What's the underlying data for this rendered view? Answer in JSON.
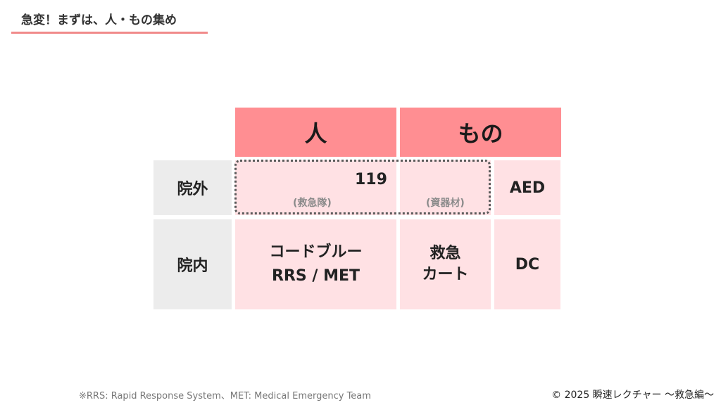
{
  "title": "急変！まずは、人・もの集め",
  "table": {
    "col_headers": [
      "人",
      "もの"
    ],
    "row_headers": [
      "院外",
      "院内"
    ],
    "outside": {
      "people_value": "119",
      "people_note": "(救急隊)",
      "things_note": "(資器材)",
      "device": "AED"
    },
    "inside": {
      "people_line1": "コードブルー",
      "people_line2": "RRS / MET",
      "things_line1": "救急",
      "things_line2": "カート",
      "device": "DC"
    }
  },
  "footnote": "※RRS: Rapid Response System、MET: Medical Emergency Team",
  "copyright": "© 2025 瞬速レクチャー 〜救急編〜"
}
